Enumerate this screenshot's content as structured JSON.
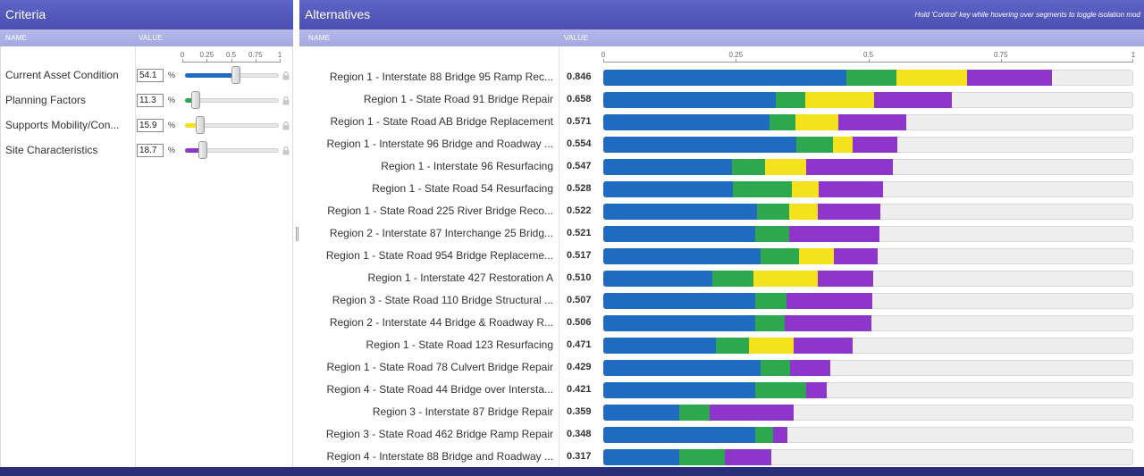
{
  "criteria_panel": {
    "title": "Criteria",
    "col_name": "NAME",
    "col_value": "VALUE",
    "scale_ticks": [
      "0",
      "0.25",
      "0.5",
      "0.75",
      "1"
    ],
    "pct_symbol": "%",
    "items": [
      {
        "name": "Current Asset Condition",
        "value": "54.1",
        "fraction": 0.541,
        "color": "#1f6bbf"
      },
      {
        "name": "Planning Factors",
        "value": "11.3",
        "fraction": 0.113,
        "color": "#2ea84e"
      },
      {
        "name": "Supports Mobility/Con...",
        "value": "15.9",
        "fraction": 0.159,
        "color": "#f4e31c"
      },
      {
        "name": "Site Characteristics",
        "value": "18.7",
        "fraction": 0.187,
        "color": "#8e35cc"
      }
    ]
  },
  "alternatives_panel": {
    "title": "Alternatives",
    "hint": "Hold 'Control' key while hovering over segments to toggle isolation mod",
    "col_name": "NAME",
    "col_value": "VALUE"
  },
  "chart_data": {
    "type": "bar",
    "orientation": "horizontal-stacked",
    "xlim": [
      0,
      1
    ],
    "x_ticks": [
      "0",
      "0.25",
      "0.5",
      "0.75",
      "1"
    ],
    "series": [
      {
        "name": "Current Asset Condition",
        "color": "#1f6bbf"
      },
      {
        "name": "Planning Factors",
        "color": "#2ea84e"
      },
      {
        "name": "Supports Mobility/Con...",
        "color": "#f4e31c"
      },
      {
        "name": "Site Characteristics",
        "color": "#8e35cc"
      }
    ],
    "rows": [
      {
        "name": "Region 1 - Interstate 88 Bridge 95 Ramp Rec...",
        "score": "0.846",
        "segments": [
          0.459,
          0.094,
          0.134,
          0.159
        ]
      },
      {
        "name": "Region 1 - State Road 91 Bridge Repair",
        "score": "0.658",
        "segments": [
          0.326,
          0.055,
          0.13,
          0.147
        ]
      },
      {
        "name": "Region 1 - State Road AB Bridge Replacement",
        "score": "0.571",
        "segments": [
          0.314,
          0.048,
          0.082,
          0.127
        ]
      },
      {
        "name": "Region 1 - Interstate 96 Bridge and Roadway ...",
        "score": "0.554",
        "segments": [
          0.365,
          0.069,
          0.037,
          0.083
        ]
      },
      {
        "name": "Region 1 - Interstate 96 Resurfacing",
        "score": "0.547",
        "segments": [
          0.243,
          0.062,
          0.077,
          0.165
        ]
      },
      {
        "name": "Region 1 - State Road 54 Resurfacing",
        "score": "0.528",
        "segments": [
          0.245,
          0.11,
          0.052,
          0.121
        ]
      },
      {
        "name": "Region 1 - State Road 225 River Bridge Reco...",
        "score": "0.522",
        "segments": [
          0.29,
          0.06,
          0.055,
          0.117
        ]
      },
      {
        "name": "Region 2 - Interstate 87 Interchange 25 Bridg...",
        "score": "0.521",
        "segments": [
          0.286,
          0.064,
          0.0,
          0.171
        ]
      },
      {
        "name": "Region 1 - State Road 954 Bridge Replaceme...",
        "score": "0.517",
        "segments": [
          0.297,
          0.073,
          0.065,
          0.082
        ]
      },
      {
        "name": "Region 1 - Interstate 427 Restoration A",
        "score": "0.510",
        "segments": [
          0.206,
          0.078,
          0.121,
          0.105
        ]
      },
      {
        "name": "Region 3 - State Road 110 Bridge Structural ...",
        "score": "0.507",
        "segments": [
          0.286,
          0.059,
          0.0,
          0.162
        ]
      },
      {
        "name": "Region 2 - Interstate 44 Bridge & Roadway R...",
        "score": "0.506",
        "segments": [
          0.286,
          0.057,
          0.0,
          0.163
        ]
      },
      {
        "name": "Region 1 - State Road 123 Resurfacing",
        "score": "0.471",
        "segments": [
          0.213,
          0.062,
          0.085,
          0.111
        ]
      },
      {
        "name": "Region 1 - State Road 78 Culvert Bridge Repair",
        "score": "0.429",
        "segments": [
          0.296,
          0.056,
          0.0,
          0.077
        ]
      },
      {
        "name": "Region 4 - State Road 44 Bridge over Intersta...",
        "score": "0.421",
        "segments": [
          0.286,
          0.097,
          0.0,
          0.038
        ]
      },
      {
        "name": "Region 3 - Interstate 87 Bridge Repair",
        "score": "0.359",
        "segments": [
          0.143,
          0.058,
          0.0,
          0.158
        ]
      },
      {
        "name": "Region 3 - State Road 462 Bridge Ramp Repair",
        "score": "0.348",
        "segments": [
          0.286,
          0.035,
          0.0,
          0.027
        ]
      },
      {
        "name": "Region 4 - Interstate 88 Bridge and Roadway ...",
        "score": "0.317",
        "segments": [
          0.143,
          0.087,
          0.0,
          0.087
        ]
      }
    ]
  }
}
